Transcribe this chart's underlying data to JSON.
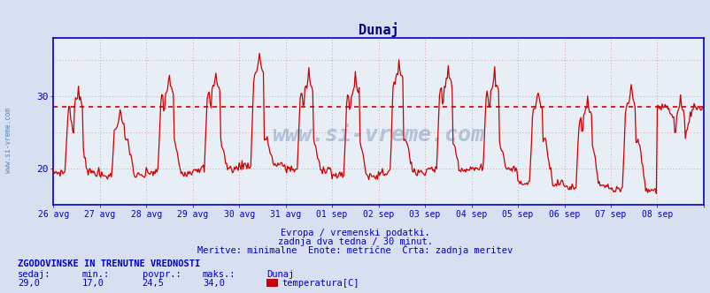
{
  "title": "Dunaj",
  "title_color": "#000080",
  "bg_color": "#d8dff0",
  "plot_bg_color": "#e8eef5",
  "grid_color": "#cc8888",
  "grid_style": "dotted",
  "axis_color": "#0000cc",
  "line_color": "#cc0000",
  "avg_line_color": "#cc0000",
  "avg_line_style": "dotted",
  "avg_value": 28.5,
  "ymin": 15,
  "ymax": 38,
  "ytick_vals": [
    20,
    30
  ],
  "watermark": "www.si-vreme.com",
  "watermark_color": "#336699",
  "xlabel_line1": "Evropa / vremenski podatki.",
  "xlabel_line2": "zadnja dva tedna / 30 minut.",
  "xlabel_line3": "Meritve: minimalne  Enote: metrične  Črta: zadnja meritev",
  "footer_title": "ZGODOVINSKE IN TRENUTNE VREDNOSTI",
  "footer_labels": [
    "sedaj:",
    "min.:",
    "povpr.:",
    "maks.:",
    "Dunaj"
  ],
  "footer_values": [
    "29,0",
    "17,0",
    "24,5",
    "34,0"
  ],
  "footer_series": "temperatura[C]",
  "footer_series_color": "#cc0000",
  "x_labels": [
    "26 avg",
    "27 avg",
    "28 avg",
    "29 avg",
    "30 avg",
    "31 avg",
    "01 sep",
    "02 sep",
    "03 sep",
    "04 sep",
    "05 sep",
    "06 sep",
    "07 sep",
    "08 sep"
  ],
  "n_days": 14,
  "samples_per_day": 48,
  "side_label": "www.si-vreme.com",
  "side_label_color": "#4477aa"
}
